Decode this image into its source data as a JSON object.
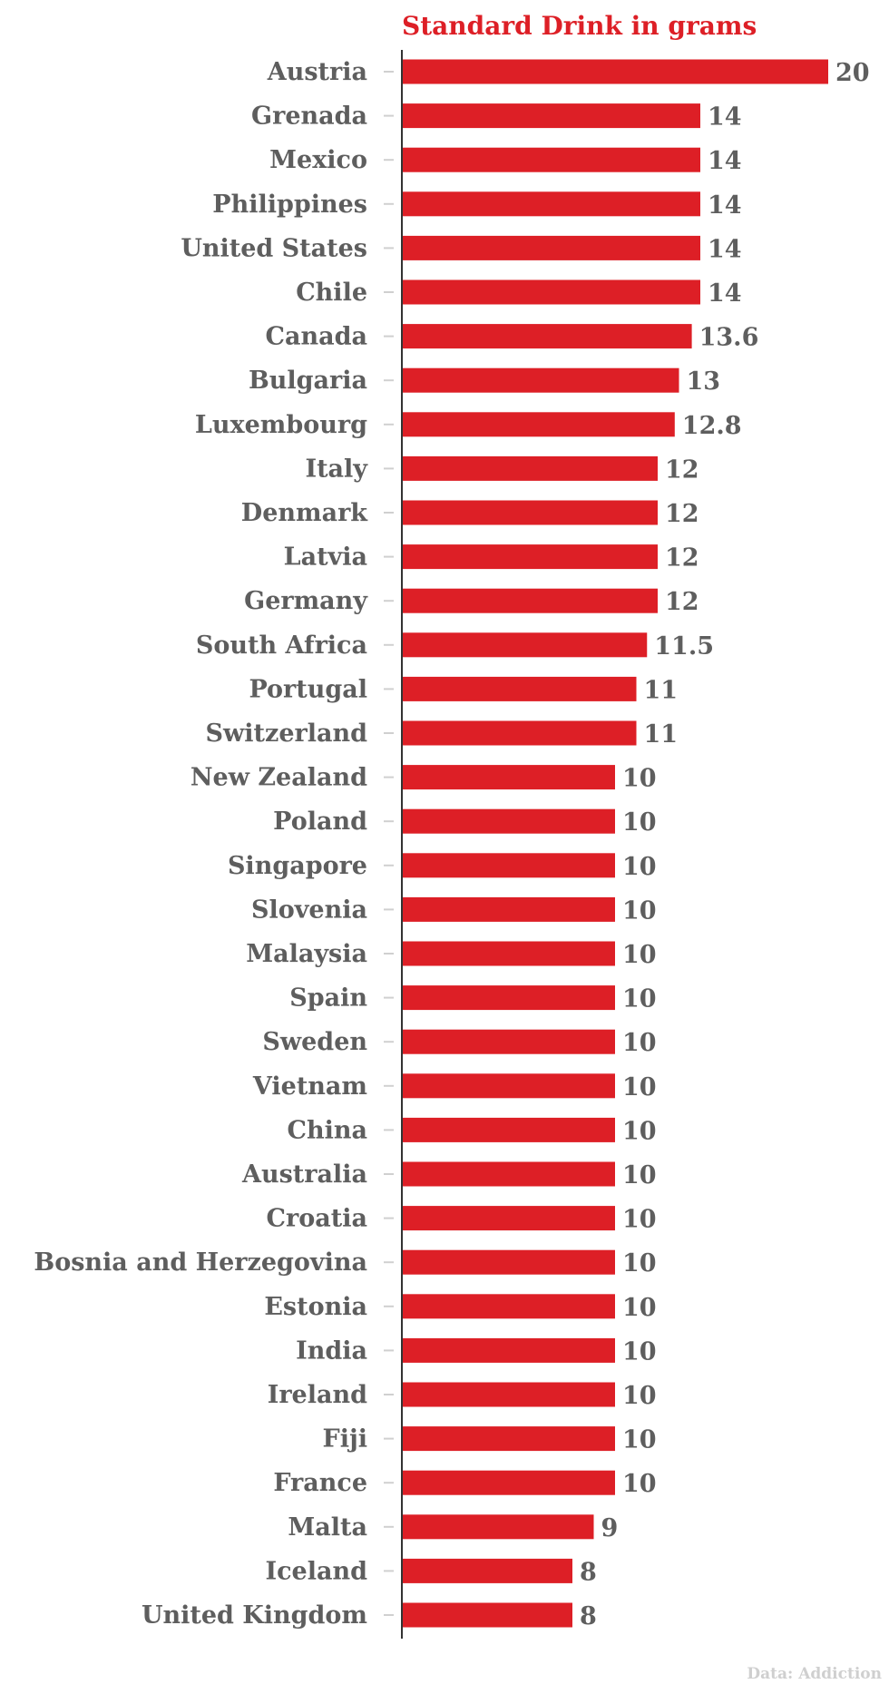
{
  "chart_data": {
    "type": "bar",
    "orientation": "horizontal",
    "title": "Standard Drink in grams",
    "source": "Data: Addiction",
    "categories": [
      "Austria",
      "Grenada",
      "Mexico",
      "Philippines",
      "United States",
      "Chile",
      "Canada",
      "Bulgaria",
      "Luxembourg",
      "Italy",
      "Denmark",
      "Latvia",
      "Germany",
      "South Africa",
      "Portugal",
      "Switzerland",
      "New Zealand",
      "Poland",
      "Singapore",
      "Slovenia",
      "Malaysia",
      "Spain",
      "Sweden",
      "Vietnam",
      "China",
      "Australia",
      "Croatia",
      "Bosnia and Herzegovina",
      "Estonia",
      "India",
      "Ireland",
      "Fiji",
      "France",
      "Malta",
      "Iceland",
      "United Kingdom"
    ],
    "values": [
      20,
      14,
      14,
      14,
      14,
      14,
      13.6,
      13,
      12.8,
      12,
      12,
      12,
      12,
      11.5,
      11,
      11,
      10,
      10,
      10,
      10,
      10,
      10,
      10,
      10,
      10,
      10,
      10,
      10,
      10,
      10,
      10,
      10,
      10,
      9,
      8,
      8
    ],
    "value_labels": [
      "20",
      "14",
      "14",
      "14",
      "14",
      "14",
      "13.6",
      "13",
      "12.8",
      "12",
      "12",
      "12",
      "12",
      "11.5",
      "11",
      "11",
      "10",
      "10",
      "10",
      "10",
      "10",
      "10",
      "10",
      "10",
      "10",
      "10",
      "10",
      "10",
      "10",
      "10",
      "10",
      "10",
      "10",
      "9",
      "8",
      "8"
    ],
    "xlim": [
      0,
      20
    ],
    "grid": false,
    "colors": {
      "bar": "#dd1f26",
      "label": "#5e5e5e",
      "title": "#dd1f26",
      "source": "#cfcfcf",
      "axis": "#333333",
      "tick": "#d0d0d0"
    }
  }
}
